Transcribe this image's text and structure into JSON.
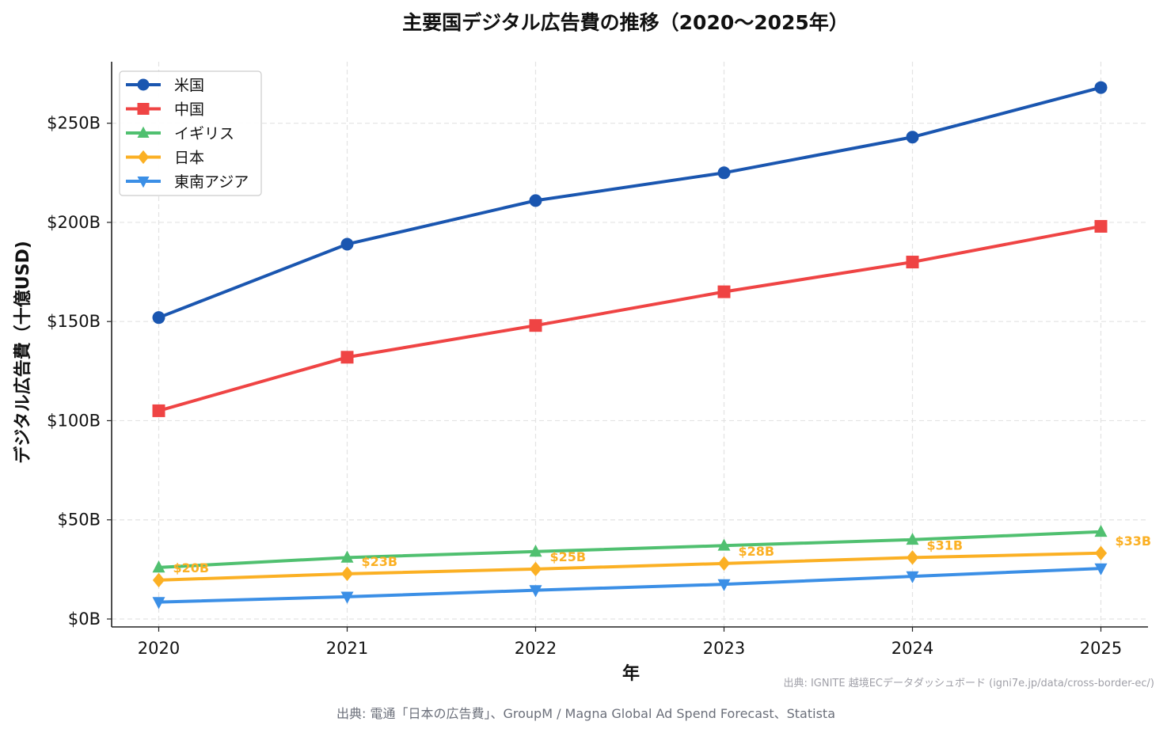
{
  "chart_data": {
    "type": "line",
    "title": "主要国デジタル広告費の推移（2020〜2025年）",
    "xlabel": "年",
    "ylabel": "デジタル広告費（十億USD)",
    "x": [
      2020,
      2021,
      2022,
      2023,
      2024,
      2025
    ],
    "xlim": [
      2019.75,
      2025.25
    ],
    "ylim": [
      -4,
      281
    ],
    "yticks": [
      0,
      50,
      100,
      150,
      200,
      250
    ],
    "ytick_labels": [
      "$0B",
      "$50B",
      "$100B",
      "$150B",
      "$200B",
      "$250B"
    ],
    "xtick_labels": [
      "2020",
      "2021",
      "2022",
      "2023",
      "2024",
      "2025"
    ],
    "grid": true,
    "legend_position": "top-left",
    "series": [
      {
        "name": "米国",
        "color": "#1a56b0",
        "marker": "circle",
        "values": [
          152,
          189,
          211,
          225,
          243,
          268
        ]
      },
      {
        "name": "中国",
        "color": "#ef4444",
        "marker": "square",
        "values": [
          105,
          132,
          148,
          165,
          180,
          198
        ]
      },
      {
        "name": "イギリス",
        "color": "#50c070",
        "marker": "triangle-up",
        "values": [
          26,
          31,
          34,
          37,
          40,
          44
        ]
      },
      {
        "name": "日本",
        "color": "#fbb024",
        "marker": "diamond",
        "values": [
          19.6,
          22.8,
          25.2,
          28,
          31,
          33.2
        ],
        "data_labels": [
          "$20B",
          "$23B",
          "$25B",
          "$28B",
          "$31B",
          "$33B"
        ]
      },
      {
        "name": "東南アジア",
        "color": "#3b8fe6",
        "marker": "triangle-down",
        "values": [
          8.5,
          11.2,
          14.5,
          17.5,
          21.5,
          25.5
        ]
      }
    ]
  },
  "footer": {
    "watermark": "出典: IGNITE 越境ECデータダッシュボード (igni7e.jp/data/cross-border-ec/)",
    "source": "出典: 電通「日本の広告費」、GroupM / Magna Global Ad Spend Forecast、Statista"
  }
}
